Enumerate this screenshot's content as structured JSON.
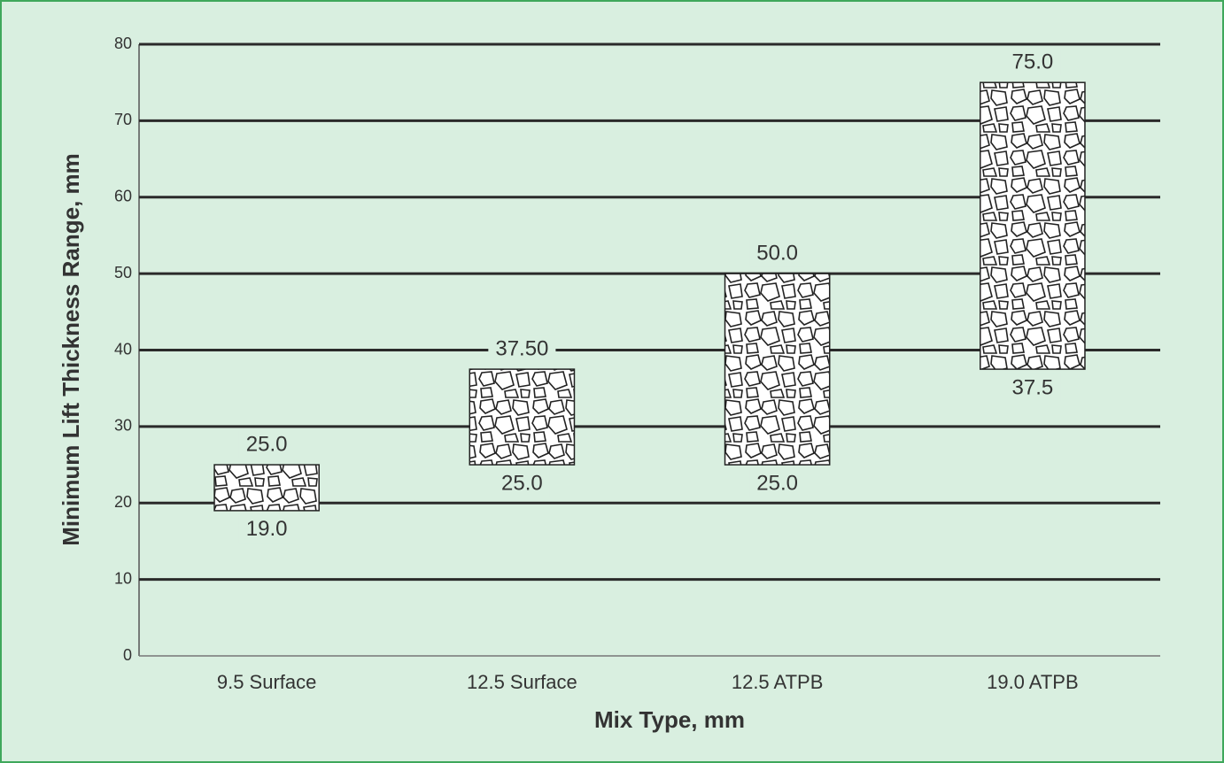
{
  "chart_data": {
    "type": "range",
    "x_label": "Mix Type, mm",
    "y_label": "Minimum Lift Thickness Range, mm",
    "categories": [
      "9.5 Surface",
      "12.5 Surface",
      "12.5 ATPB",
      "19.0 ATPB"
    ],
    "low": {
      "values": [
        19.0,
        25.0,
        25.0,
        37.5
      ],
      "value_labels": [
        "19.0",
        "25.0",
        "25.0",
        "37.5"
      ]
    },
    "high": {
      "values": [
        25.0,
        37.5,
        50.0,
        75.0
      ],
      "value_labels": [
        "25.0",
        "37.50",
        "50.0",
        "75.0"
      ]
    },
    "ylim": [
      0,
      80
    ],
    "yticks": [
      0,
      10,
      20,
      30,
      40,
      50,
      60,
      70,
      80
    ],
    "grid": true
  }
}
